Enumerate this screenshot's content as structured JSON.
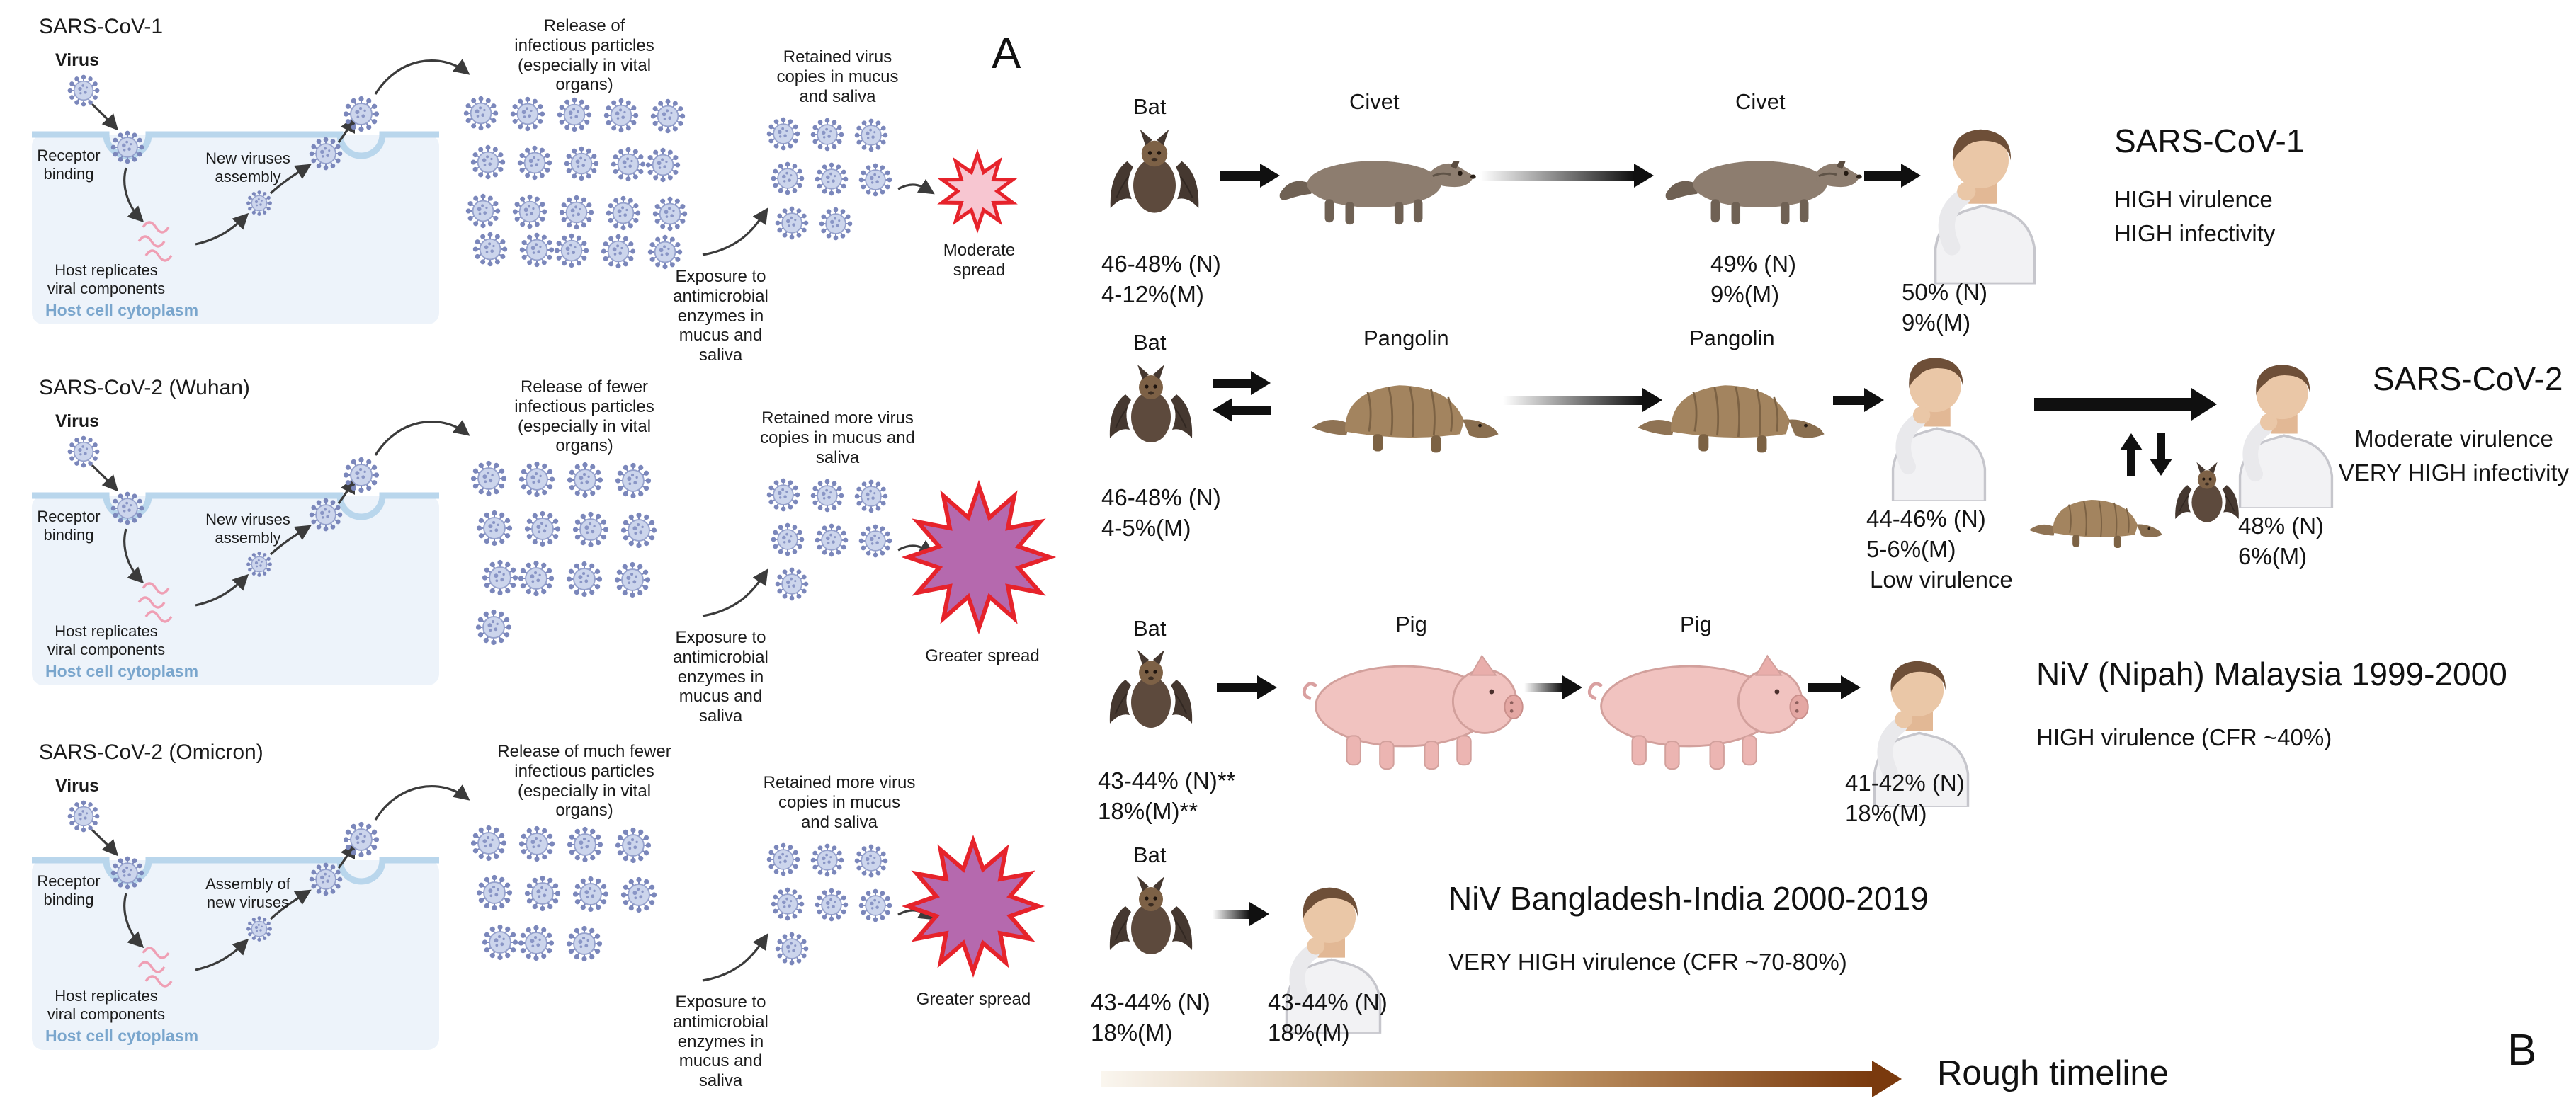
{
  "panel_a": {
    "label": "A",
    "sections": [
      {
        "title": "SARS-CoV-1",
        "virus_label": "Virus",
        "receptor_binding": "Receptor\nbinding",
        "host_replicates": "Host replicates\nviral components",
        "assembly": "New viruses\nassembly",
        "cytoplasm": "Host cell cytoplasm",
        "release": "Release of\ninfectious particles\n(especially in vital\norgans)",
        "release_count": 20,
        "exposure": "Exposure to\nantimicrobial\nenzymes in\nmucus and\nsaliva",
        "retained": "Retained virus\ncopies in mucus\nand saliva",
        "retained_count": 8,
        "spread": "Moderate\nspread"
      },
      {
        "title": "SARS-CoV-2 (Wuhan)",
        "virus_label": "Virus",
        "receptor_binding": "Receptor\nbinding",
        "host_replicates": "Host replicates\nviral components",
        "assembly": "New viruses\nassembly",
        "cytoplasm": "Host cell cytoplasm",
        "release": "Release of fewer\ninfectious particles\n(especially in vital\norgans)",
        "release_count": 13,
        "exposure": "Exposure to\nantimicrobial\nenzymes in\nmucus and\nsaliva",
        "retained": "Retained more virus\ncopies in mucus and\nsaliva",
        "retained_count": 7,
        "spread": "Greater spread"
      },
      {
        "title": "SARS-CoV-2 (Omicron)",
        "virus_label": "Virus",
        "receptor_binding": "Receptor\nbinding",
        "host_replicates": "Host replicates\nviral components",
        "assembly": "Assembly of\nnew viruses",
        "cytoplasm": "Host cell cytoplasm",
        "release": "Release of much fewer\ninfectious particles\n(especially in vital\norgans)",
        "release_count": 11,
        "exposure": "Exposure to\nantimicrobial\nenzymes in\nmucus and\nsaliva",
        "retained": "Retained more virus\ncopies in mucus\nand saliva",
        "retained_count": 7,
        "spread": "Greater spread"
      }
    ]
  },
  "panel_b": {
    "label": "B",
    "chains": [
      {
        "title": "SARS-CoV-1",
        "subtitle": "HIGH virulence\nHIGH infectivity",
        "hosts": {
          "bat": "Bat",
          "civet1": "Civet",
          "civet2": "Civet"
        },
        "stats": {
          "bat": "46-48% (N)\n4-12%(M)",
          "civet2": "49% (N)\n9%(M)",
          "human": "50% (N)\n9%(M)"
        }
      },
      {
        "title": "SARS-CoV-2",
        "subtitle": "Moderate virulence\nVERY HIGH infectivity",
        "hosts": {
          "bat": "Bat",
          "pangolin1": "Pangolin",
          "pangolin2": "Pangolin"
        },
        "stats": {
          "bat": "46-48% (N)\n4-5%(M)",
          "human1": "44-46% (N)\n5-6%(M)",
          "human2": "48% (N)\n6%(M)"
        },
        "note": "Low virulence"
      },
      {
        "title": "NiV (Nipah) Malaysia 1999-2000",
        "subtitle": "HIGH virulence (CFR ~40%)",
        "hosts": {
          "bat": "Bat",
          "pig1": "Pig",
          "pig2": "Pig"
        },
        "stats": {
          "bat": "43-44% (N)**\n18%(M)**",
          "human": "41-42% (N)\n18%(M)"
        }
      },
      {
        "title": "NiV Bangladesh-India 2000-2019",
        "subtitle": "VERY HIGH virulence (CFR ~70-80%)",
        "hosts": {
          "bat": "Bat"
        },
        "stats": {
          "bat": "43-44% (N)\n18%(M)",
          "human": "43-44% (N)\n18%(M)"
        }
      }
    ],
    "timeline_label": "Rough timeline"
  }
}
